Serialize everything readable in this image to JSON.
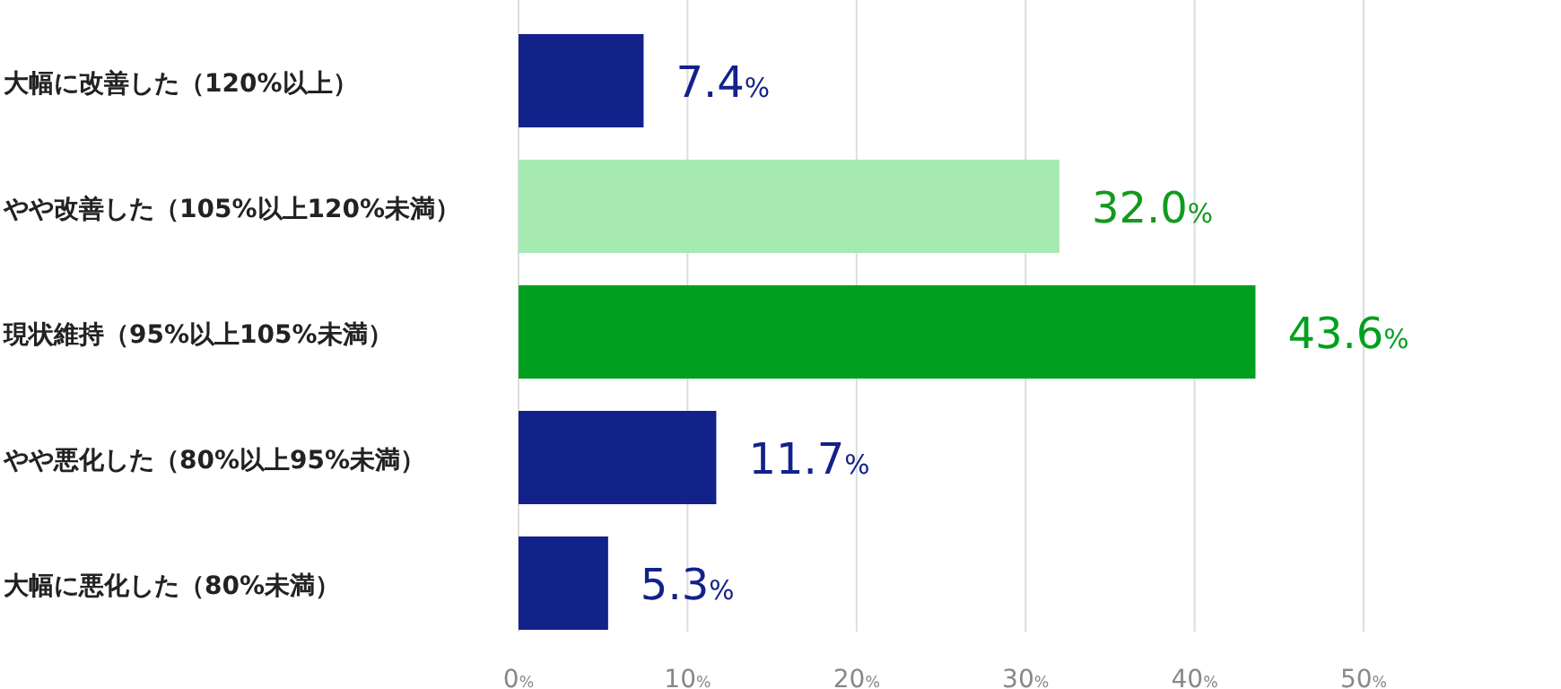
{
  "chart_data": {
    "type": "bar",
    "orientation": "horizontal",
    "categories": [
      "大幅に改善した（120%以上）",
      "やや改善した（105%以上120%未満）",
      "現状維持（95%以上105%未満）",
      "やや悪化した（80%以上95%未満）",
      "大幅に悪化した（80%未満）"
    ],
    "values": [
      7.4,
      32.0,
      43.6,
      11.7,
      5.3
    ],
    "colors": [
      "#13218a",
      "#a6e9b1",
      "#00a01e",
      "#13218a",
      "#13218a"
    ],
    "value_labels": [
      "7.4%",
      "32.0%",
      "43.6%",
      "11.7%",
      "5.3%"
    ],
    "xlim": [
      0,
      50
    ],
    "xticks": [
      {
        "value": 0,
        "label": "0%"
      },
      {
        "value": 10,
        "label": "10%"
      },
      {
        "value": 20,
        "label": "20%"
      },
      {
        "value": 30,
        "label": "30%"
      },
      {
        "value": 40,
        "label": "40%"
      },
      {
        "value": 50,
        "label": "50%"
      }
    ],
    "grid": "x"
  }
}
